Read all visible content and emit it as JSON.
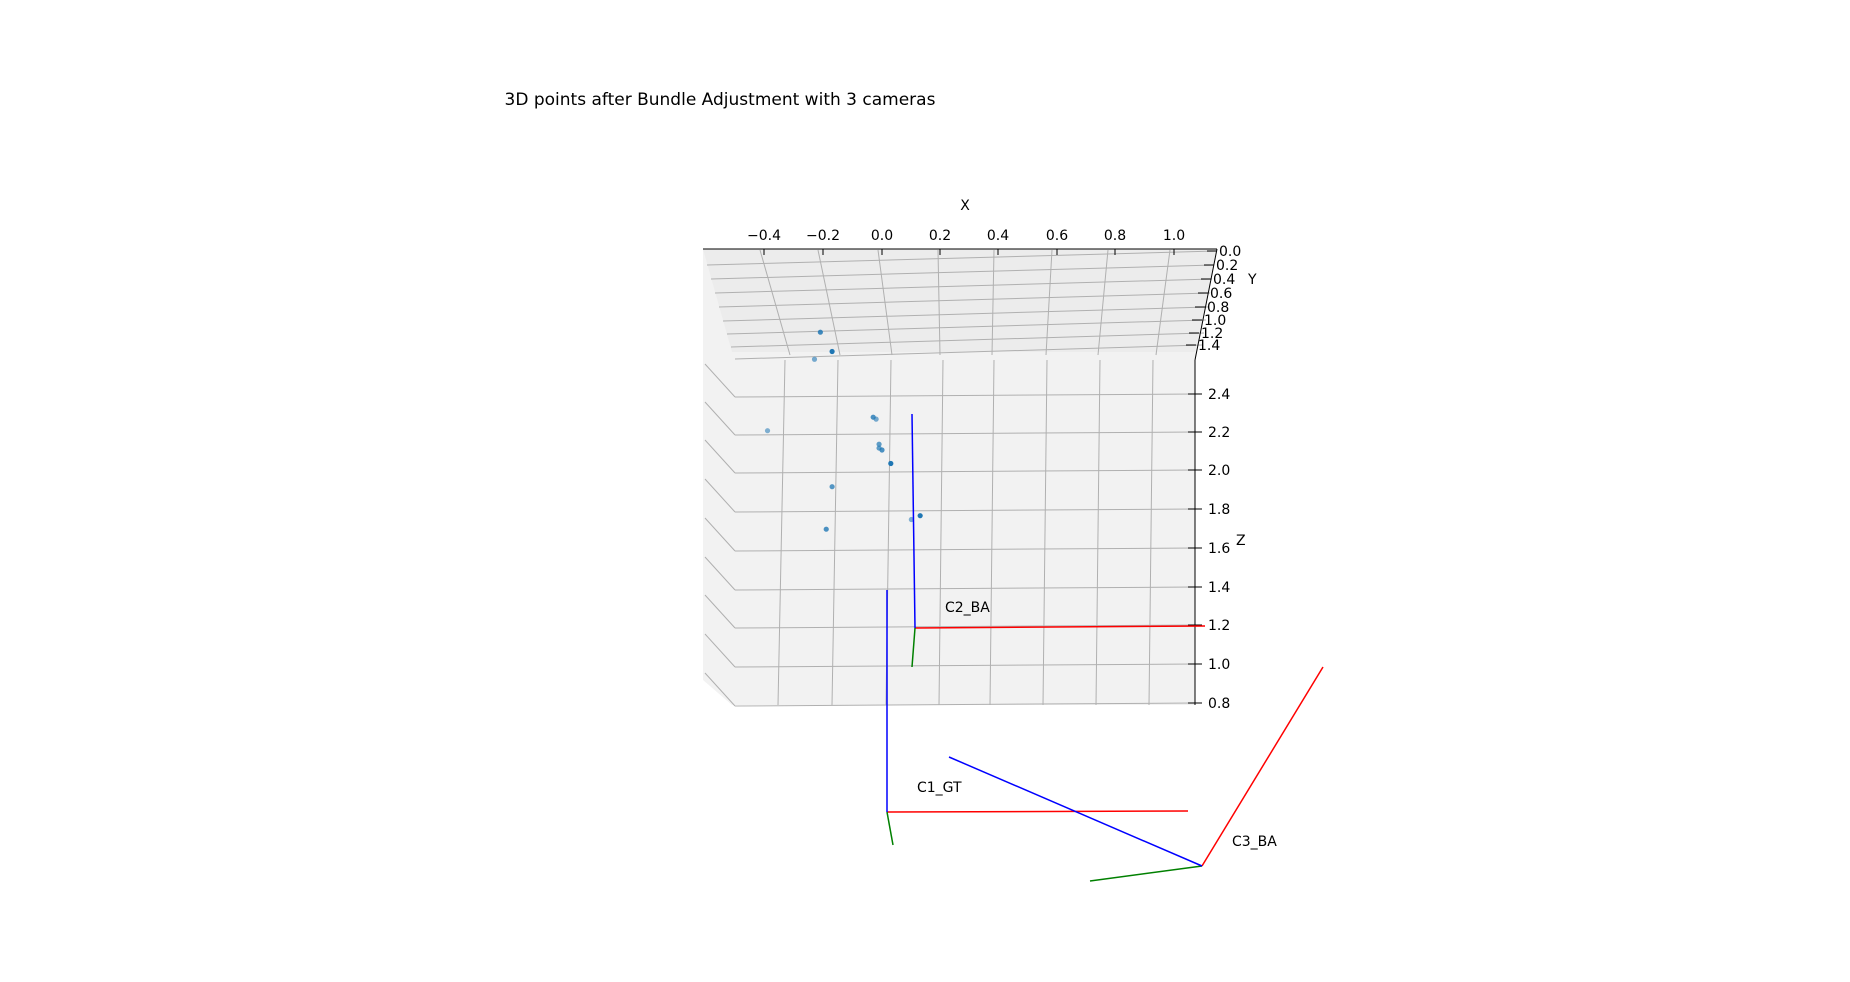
{
  "chart_data": {
    "type": "scatter",
    "projection": "3d",
    "title": "3D points after Bundle Adjustment with 3 cameras",
    "xlabel": "X",
    "ylabel": "Y",
    "zlabel": "Z",
    "x_ticks": [
      "−0.4",
      "−0.2",
      "0.0",
      "0.2",
      "0.4",
      "0.6",
      "0.8",
      "1.0"
    ],
    "y_ticks": [
      "0.0",
      "0.2",
      "0.4",
      "0.6",
      "0.8",
      "1.0",
      "1.2",
      "1.4"
    ],
    "z_ticks": [
      "2.4",
      "2.2",
      "2.0",
      "1.8",
      "1.6",
      "1.4",
      "1.2",
      "1.0",
      "0.8"
    ],
    "xlim": [
      -0.6,
      1.15
    ],
    "ylim": [
      0.0,
      1.5
    ],
    "zlim": [
      0.8,
      2.5
    ],
    "grid": true,
    "point_color": "#1f77b4",
    "axis_colors": {
      "x_axis": "#ff0000",
      "y_axis": "#008000",
      "z_axis": "#0000ff"
    },
    "points": [
      {
        "x": -0.21,
        "y": 0.2,
        "z": 2.72,
        "alpha": 0.85
      },
      {
        "x": -0.17,
        "y": 0.5,
        "z": 2.62,
        "alpha": 1.0
      },
      {
        "x": -0.23,
        "y": 0.55,
        "z": 2.58,
        "alpha": 0.6
      },
      {
        "x": -0.39,
        "y": 1.45,
        "z": 2.21,
        "alpha": 0.55
      },
      {
        "x": -0.03,
        "y": 1.4,
        "z": 2.28,
        "alpha": 0.8
      },
      {
        "x": -0.02,
        "y": 1.4,
        "z": 2.27,
        "alpha": 0.6
      },
      {
        "x": -0.01,
        "y": 1.42,
        "z": 2.14,
        "alpha": 0.7
      },
      {
        "x": -0.01,
        "y": 1.44,
        "z": 2.12,
        "alpha": 0.7
      },
      {
        "x": 0.0,
        "y": 1.44,
        "z": 2.11,
        "alpha": 0.8
      },
      {
        "x": 0.03,
        "y": 1.45,
        "z": 2.04,
        "alpha": 1.0
      },
      {
        "x": -0.17,
        "y": 1.45,
        "z": 1.92,
        "alpha": 0.75
      },
      {
        "x": -0.19,
        "y": 1.45,
        "z": 1.7,
        "alpha": 0.8
      },
      {
        "x": 0.13,
        "y": 1.45,
        "z": 1.77,
        "alpha": 1.0
      },
      {
        "x": 0.1,
        "y": 1.45,
        "z": 1.75,
        "alpha": 0.55
      }
    ],
    "cameras": [
      {
        "label": "C1_GT"
      },
      {
        "label": "C2_BA"
      },
      {
        "label": "C3_BA"
      }
    ]
  }
}
